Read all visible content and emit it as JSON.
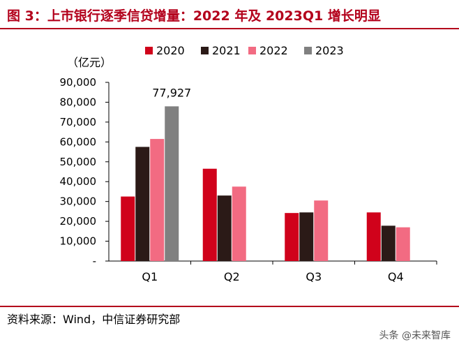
{
  "title": "图 3：上市银行逐季信贷增量：2022 年及 2023Q1 增长明显",
  "unit_label": "（亿元）",
  "source": "资料来源：Wind，中信证券研究部",
  "watermark": "头条 @未来智库",
  "chart_data": {
    "type": "bar",
    "categories": [
      "Q1",
      "Q2",
      "Q3",
      "Q4"
    ],
    "series": [
      {
        "name": "2020",
        "color": "#d0021b",
        "values": [
          32500,
          46500,
          24200,
          24500
        ]
      },
      {
        "name": "2021",
        "color": "#2b1a17",
        "values": [
          57500,
          33000,
          24500,
          17800
        ]
      },
      {
        "name": "2022",
        "color": "#f26b82",
        "values": [
          61500,
          37500,
          30500,
          17000
        ]
      },
      {
        "name": "2023",
        "color": "#808080",
        "values": [
          77927,
          null,
          null,
          null
        ]
      }
    ],
    "ylim": [
      0,
      90000
    ],
    "yticks": [
      0,
      10000,
      20000,
      30000,
      40000,
      50000,
      60000,
      70000,
      80000,
      90000
    ],
    "ytick_labels": [
      "-",
      "10,000",
      "20,000",
      "30,000",
      "40,000",
      "50,000",
      "60,000",
      "70,000",
      "80,000",
      "90,000"
    ],
    "annotations": [
      {
        "category": "Q1",
        "series": "2023",
        "text": "77,927"
      }
    ],
    "legend_position": "top",
    "grid": false
  }
}
